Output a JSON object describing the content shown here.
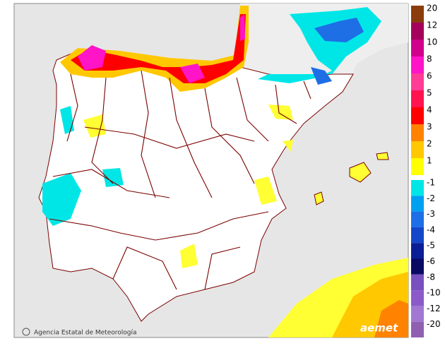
{
  "legend": {
    "items": [
      {
        "label": "20",
        "color": "#8b3c0c"
      },
      {
        "label": "12",
        "color": "#a4005c"
      },
      {
        "label": "10",
        "color": "#d0008c"
      },
      {
        "label": "8",
        "color": "#ff14c8"
      },
      {
        "label": "6",
        "color": "#ff3c96"
      },
      {
        "label": "5",
        "color": "#ff1450"
      },
      {
        "label": "4",
        "color": "#ff0000"
      },
      {
        "label": "3",
        "color": "#ff8200"
      },
      {
        "label": "2",
        "color": "#ffc800"
      },
      {
        "label": "1",
        "color": "#ffff00"
      },
      {
        "label": "-1",
        "color": "#00e6e6"
      },
      {
        "label": "-2",
        "color": "#00a0f0"
      },
      {
        "label": "-3",
        "color": "#1e6ee6"
      },
      {
        "label": "-4",
        "color": "#1446c8"
      },
      {
        "label": "-5",
        "color": "#0a1e96"
      },
      {
        "label": "-6",
        "color": "#0a0a64"
      },
      {
        "label": "-8",
        "color": "#7850c0"
      },
      {
        "label": "-10",
        "color": "#8c5ac8"
      },
      {
        "label": "-12",
        "color": "#a078d2"
      },
      {
        "label": "-20",
        "color": "#9060b0"
      }
    ]
  },
  "footer": {
    "credit": "Agencia Estatal de Meteorología",
    "logo": "aemet"
  }
}
